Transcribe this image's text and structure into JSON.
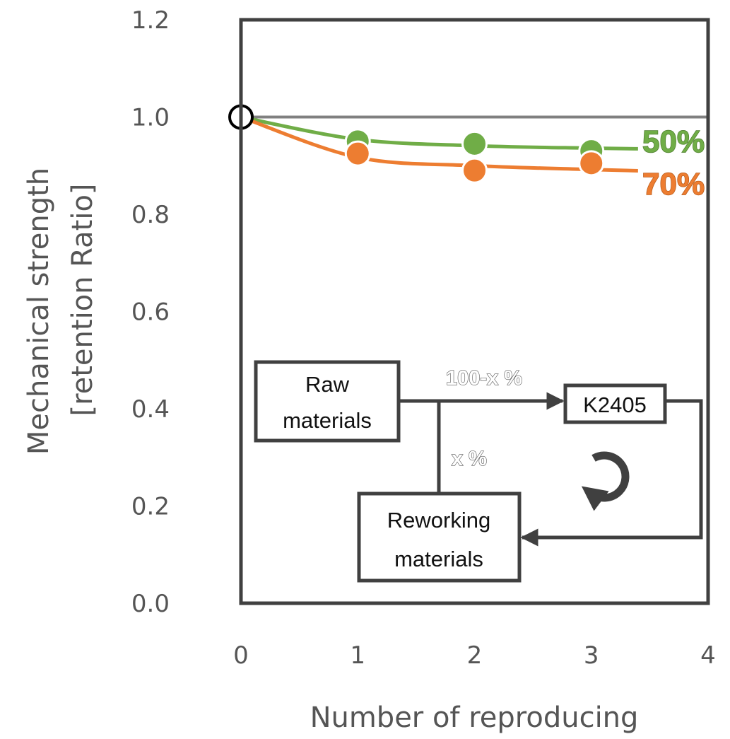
{
  "chart_data": {
    "type": "line",
    "xlabel": "Number of reproducing",
    "ylabel": "Mechanical strength",
    "ylabel2": "[retention Ratio]",
    "xlim": [
      0,
      4
    ],
    "ylim": [
      0.0,
      1.2
    ],
    "x_ticks": [
      "0",
      "1",
      "2",
      "3",
      "4"
    ],
    "y_ticks": [
      "0.0",
      "0.2",
      "0.4",
      "0.6",
      "0.8",
      "1.0",
      "1.2"
    ],
    "reference_line": 1.0,
    "origin_point": {
      "x": 0,
      "y": 1.0
    },
    "grid": false,
    "series": [
      {
        "name": "50%",
        "color": "#70ad47",
        "x": [
          1,
          2,
          3
        ],
        "y": [
          0.95,
          0.945,
          0.93
        ],
        "fit": [
          1.0,
          0.954,
          0.941,
          0.936,
          0.933
        ]
      },
      {
        "name": "70%",
        "color": "#ed7d31",
        "x": [
          1,
          2,
          3
        ],
        "y": [
          0.925,
          0.89,
          0.905
        ],
        "fit": [
          1.0,
          0.917,
          0.9,
          0.892,
          0.886
        ]
      }
    ],
    "annotations": {
      "raw_materials": "Raw\nmaterials",
      "product": "K2405",
      "reworking_materials": "Reworking\nmaterials",
      "flow_main": "100-x %",
      "flow_rework": "x %",
      "cycle_icon": "circular-arrow-icon"
    }
  }
}
